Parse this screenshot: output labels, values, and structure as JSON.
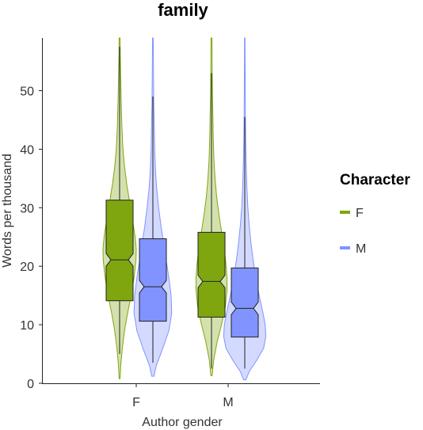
{
  "chart_data": {
    "type": "violin",
    "title": "family",
    "xlabel": "Author gender",
    "ylabel": "Words per thousand",
    "ylim": [
      0,
      59
    ],
    "yticks": [
      0,
      10,
      20,
      30,
      40,
      50
    ],
    "categories": [
      "F",
      "M"
    ],
    "legend": {
      "title": "Character",
      "position": "right"
    },
    "series": [
      {
        "name": "F",
        "color": "#7fa60f",
        "groups": [
          {
            "category": "F",
            "min": 0.8,
            "max": 59,
            "whisker_low": 5,
            "q1": 14.1,
            "median": 21.1,
            "q3": 31.3,
            "whisker_high": 57.5,
            "density": [
              [
                0.8,
                0.02
              ],
              [
                3,
                0.05
              ],
              [
                6,
                0.12
              ],
              [
                9,
                0.22
              ],
              [
                12,
                0.36
              ],
              [
                15,
                0.52
              ],
              [
                18,
                0.65
              ],
              [
                21,
                0.74
              ],
              [
                23,
                0.75
              ],
              [
                25,
                0.7
              ],
              [
                28,
                0.58
              ],
              [
                31,
                0.45
              ],
              [
                34,
                0.32
              ],
              [
                37,
                0.22
              ],
              [
                40,
                0.15
              ],
              [
                44,
                0.1
              ],
              [
                48,
                0.07
              ],
              [
                52,
                0.05
              ],
              [
                56,
                0.03
              ],
              [
                59,
                0.02
              ]
            ]
          },
          {
            "category": "M",
            "min": 1.3,
            "max": 59,
            "whisker_low": 2.5,
            "q1": 11.3,
            "median": 17.4,
            "q3": 25.8,
            "whisker_high": 53,
            "density": [
              [
                1.3,
                0.03
              ],
              [
                4,
                0.1
              ],
              [
                7,
                0.25
              ],
              [
                10,
                0.45
              ],
              [
                13,
                0.62
              ],
              [
                16,
                0.7
              ],
              [
                18,
                0.7
              ],
              [
                20,
                0.66
              ],
              [
                23,
                0.58
              ],
              [
                26,
                0.45
              ],
              [
                29,
                0.33
              ],
              [
                32,
                0.23
              ],
              [
                35,
                0.16
              ],
              [
                38,
                0.11
              ],
              [
                42,
                0.08
              ],
              [
                46,
                0.06
              ],
              [
                50,
                0.04
              ],
              [
                54,
                0.03
              ],
              [
                59,
                0.02
              ]
            ]
          }
        ]
      },
      {
        "name": "M",
        "color": "#8093ff",
        "groups": [
          {
            "category": "F",
            "min": 1.2,
            "max": 59,
            "whisker_low": 3.5,
            "q1": 10.6,
            "median": 16.5,
            "q3": 24.7,
            "whisker_high": 49,
            "density": [
              [
                1.2,
                0.05
              ],
              [
                3,
                0.15
              ],
              [
                6,
                0.45
              ],
              [
                9,
                0.72
              ],
              [
                12,
                0.85
              ],
              [
                15,
                0.82
              ],
              [
                18,
                0.72
              ],
              [
                21,
                0.6
              ],
              [
                24,
                0.48
              ],
              [
                27,
                0.36
              ],
              [
                30,
                0.26
              ],
              [
                33,
                0.18
              ],
              [
                36,
                0.12
              ],
              [
                40,
                0.08
              ],
              [
                44,
                0.06
              ],
              [
                48,
                0.04
              ],
              [
                52,
                0.03
              ],
              [
                56,
                0.02
              ],
              [
                59,
                0.015
              ]
            ]
          },
          {
            "category": "M",
            "min": 0.6,
            "max": 59,
            "whisker_low": 2.5,
            "q1": 7.9,
            "median": 12.8,
            "q3": 19.7,
            "whisker_high": 45.5,
            "density": [
              [
                0.6,
                0.05
              ],
              [
                2,
                0.2
              ],
              [
                4,
                0.55
              ],
              [
                6,
                0.85
              ],
              [
                8,
                0.95
              ],
              [
                10,
                0.92
              ],
              [
                12,
                0.82
              ],
              [
                15,
                0.65
              ],
              [
                18,
                0.5
              ],
              [
                21,
                0.38
              ],
              [
                24,
                0.28
              ],
              [
                27,
                0.2
              ],
              [
                30,
                0.14
              ],
              [
                34,
                0.09
              ],
              [
                38,
                0.06
              ],
              [
                42,
                0.04
              ],
              [
                46,
                0.03
              ],
              [
                50,
                0.02
              ],
              [
                55,
                0.015
              ],
              [
                59,
                0.01
              ]
            ]
          }
        ]
      }
    ]
  }
}
